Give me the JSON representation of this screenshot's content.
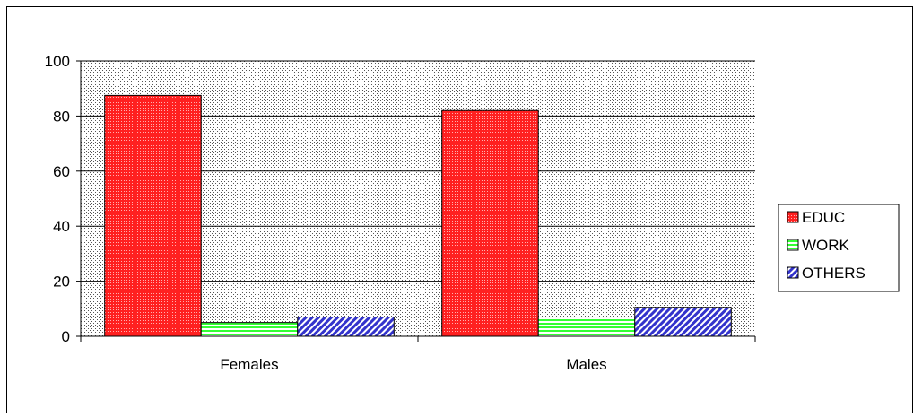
{
  "chart_data": {
    "type": "bar",
    "categories": [
      "Females",
      "Males"
    ],
    "series": [
      {
        "name": "EDUC",
        "values": [
          87.5,
          82
        ],
        "color": "#ff0000",
        "pattern": "dots"
      },
      {
        "name": "WORK",
        "values": [
          5,
          7
        ],
        "color": "#33ff33",
        "pattern": "horizontal-stripes"
      },
      {
        "name": "OTHERS",
        "values": [
          7,
          10.5
        ],
        "color": "#3333cc",
        "pattern": "diagonal-stripes"
      }
    ],
    "ylim": [
      0,
      100
    ],
    "yticks": [
      "0",
      "20",
      "40",
      "60",
      "80",
      "100"
    ],
    "grid": true,
    "legend_position": "right",
    "plot_background": "dotted-gray"
  }
}
